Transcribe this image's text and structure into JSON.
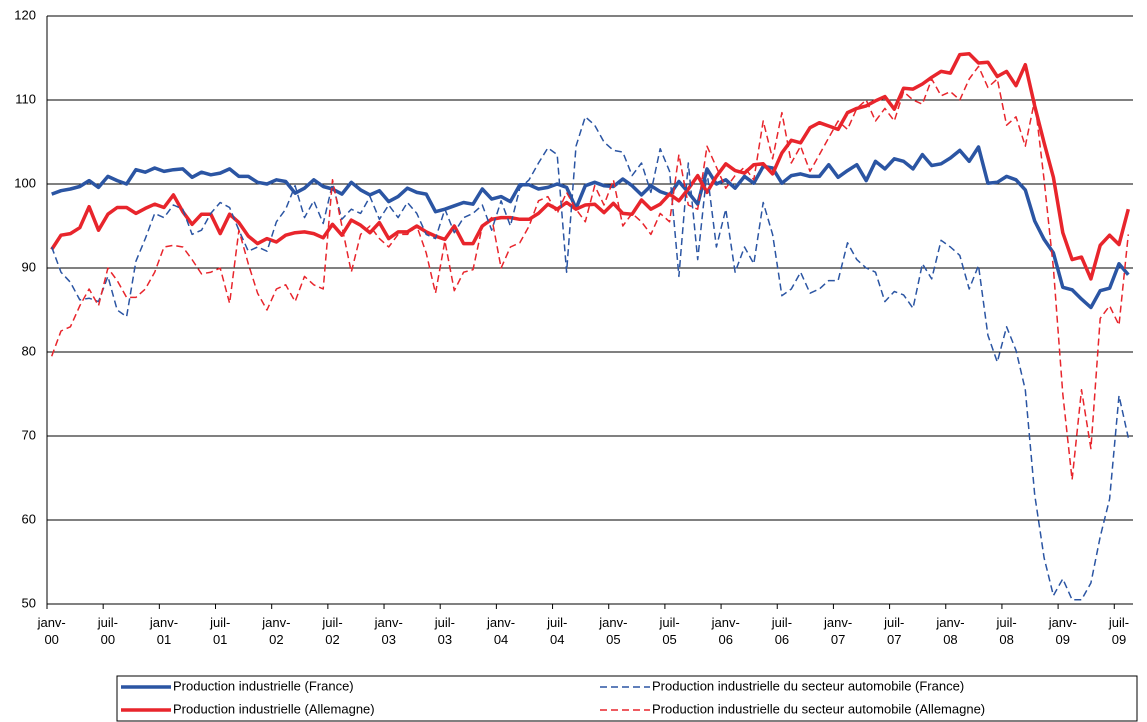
{
  "chart_data": {
    "type": "line",
    "categories": [
      "janv-00",
      null,
      null,
      null,
      null,
      null,
      "juil-00",
      null,
      null,
      null,
      null,
      null,
      "janv-01",
      null,
      null,
      null,
      null,
      null,
      "juil-01",
      null,
      null,
      null,
      null,
      null,
      "janv-02",
      null,
      null,
      null,
      null,
      null,
      "juil-02",
      null,
      null,
      null,
      null,
      null,
      "janv-03",
      null,
      null,
      null,
      null,
      null,
      "juil-03",
      null,
      null,
      null,
      null,
      null,
      "janv-04",
      null,
      null,
      null,
      null,
      null,
      "juil-04",
      null,
      null,
      null,
      null,
      null,
      "janv-05",
      null,
      null,
      null,
      null,
      null,
      "juil-05",
      null,
      null,
      null,
      null,
      null,
      "janv-06",
      null,
      null,
      null,
      null,
      null,
      "juil-06",
      null,
      null,
      null,
      null,
      null,
      "janv-07",
      null,
      null,
      null,
      null,
      null,
      "juil-07",
      null,
      null,
      null,
      null,
      null,
      "janv-08",
      null,
      null,
      null,
      null,
      null,
      "juil-08",
      null,
      null,
      null,
      null,
      null,
      "janv-09",
      null,
      null,
      null,
      null,
      null,
      "juil-09",
      null
    ],
    "ylim": [
      50,
      120
    ],
    "yticks": [
      50,
      60,
      70,
      80,
      90,
      100,
      110,
      120
    ],
    "grid": true,
    "series": [
      {
        "name": "Production industrielle (France)",
        "color": "#2b55a3",
        "dashed": false,
        "values": [
          98.8,
          99.2,
          99.4,
          99.7,
          100.4,
          99.6,
          100.9,
          100.4,
          100.0,
          101.7,
          101.4,
          101.9,
          101.5,
          101.7,
          101.8,
          100.8,
          101.4,
          101.1,
          101.3,
          101.8,
          100.9,
          100.9,
          100.2,
          100.0,
          100.5,
          100.3,
          98.9,
          99.5,
          100.5,
          99.7,
          99.4,
          98.8,
          100.2,
          99.3,
          98.7,
          99.2,
          97.9,
          98.5,
          99.5,
          99.0,
          98.8,
          96.7,
          97.0,
          97.4,
          97.8,
          97.6,
          99.4,
          98.2,
          98.5,
          97.9,
          99.9,
          99.9,
          99.4,
          99.6,
          100.0,
          99.6,
          97.1,
          99.8,
          100.2,
          99.8,
          99.7,
          100.6,
          99.8,
          98.7,
          99.8,
          99.1,
          98.7,
          100.3,
          99.0,
          97.6,
          101.8,
          100.0,
          100.5,
          99.5,
          100.9,
          100.1,
          102.1,
          101.9,
          100.1,
          101.0,
          101.2,
          100.9,
          100.9,
          102.3,
          100.8,
          101.6,
          102.3,
          100.4,
          102.7,
          101.8,
          103.0,
          102.7,
          101.8,
          103.5,
          102.2,
          102.4,
          103.1,
          104.0,
          102.7,
          104.4,
          100.1,
          100.2,
          100.9,
          100.5,
          99.3,
          95.6,
          93.4,
          91.8,
          87.7,
          87.4,
          86.3,
          85.3,
          87.3,
          87.6,
          90.5,
          89.2
        ]
      },
      {
        "name": "Production industrielle (Allemagne)",
        "color": "#e8252c",
        "dashed": false,
        "values": [
          92.2,
          93.9,
          94.1,
          94.8,
          97.3,
          94.5,
          96.4,
          97.2,
          97.2,
          96.5,
          97.1,
          97.6,
          97.2,
          98.7,
          96.7,
          95.2,
          96.4,
          96.4,
          94.1,
          96.4,
          95.4,
          93.8,
          92.9,
          93.5,
          93.1,
          93.9,
          94.2,
          94.3,
          94.1,
          93.6,
          95.2,
          93.9,
          95.7,
          95.1,
          94.2,
          95.4,
          93.5,
          94.3,
          94.3,
          95.0,
          94.3,
          93.8,
          93.4,
          95.0,
          92.9,
          92.9,
          95.0,
          95.8,
          96.0,
          96.0,
          95.8,
          95.8,
          96.5,
          97.6,
          97.0,
          97.8,
          97.0,
          97.5,
          97.6,
          96.6,
          97.7,
          96.5,
          96.4,
          98.1,
          97.0,
          97.6,
          98.8,
          98.0,
          99.4,
          101.0,
          99.0,
          100.9,
          102.4,
          101.6,
          101.3,
          102.3,
          102.4,
          101.2,
          103.7,
          105.2,
          104.9,
          106.7,
          107.3,
          106.9,
          106.5,
          108.5,
          109.0,
          109.3,
          109.9,
          110.4,
          108.9,
          111.4,
          111.3,
          111.9,
          112.7,
          113.4,
          113.2,
          115.4,
          115.5,
          114.4,
          114.5,
          112.8,
          113.4,
          111.7,
          114.2,
          109.3,
          104.9,
          100.8,
          94.2,
          91.0,
          91.3,
          88.7,
          92.7,
          93.9,
          92.8,
          97.0
        ]
      },
      {
        "name": "Production industrielle du secteur automobile (France)",
        "color": "#2b55a3",
        "dashed": true,
        "values": [
          92.5,
          89.5,
          88.3,
          86.2,
          86.4,
          86.0,
          89.0,
          85.0,
          84.2,
          90.8,
          93.5,
          96.5,
          96.0,
          97.5,
          97.0,
          94.0,
          94.5,
          96.5,
          97.8,
          97.2,
          94.5,
          92.0,
          92.5,
          92.0,
          95.5,
          97.0,
          99.8,
          96.0,
          98.0,
          95.3,
          100.0,
          95.8,
          97.0,
          96.5,
          98.5,
          95.8,
          97.5,
          96.0,
          97.8,
          96.5,
          94.0,
          93.5,
          97.0,
          94.2,
          96.0,
          96.5,
          97.5,
          94.5,
          98.0,
          95.0,
          99.5,
          100.5,
          102.5,
          104.3,
          103.5,
          89.5,
          104.5,
          108.0,
          107.0,
          105.0,
          104.0,
          103.8,
          101.0,
          102.5,
          99.0,
          104.2,
          101.5,
          89.0,
          102.5,
          91.0,
          101.5,
          92.5,
          97.0,
          89.5,
          92.5,
          90.5,
          97.8,
          94.0,
          86.7,
          87.5,
          89.5,
          87.0,
          87.5,
          88.5,
          88.5,
          93.0,
          91.0,
          90.0,
          89.5,
          86.0,
          87.2,
          86.8,
          85.2,
          90.5,
          88.7,
          93.3,
          92.5,
          91.5,
          87.5,
          90.3,
          82.0,
          78.8,
          83.0,
          80.2,
          75.5,
          63.0,
          55.5,
          51.0,
          53.0,
          50.5,
          50.5,
          52.5,
          58.0,
          62.5,
          74.8,
          69.8
        ]
      },
      {
        "name": "Production industrielle du secteur automobile (Allemagne)",
        "color": "#e8252c",
        "dashed": true,
        "values": [
          79.5,
          82.5,
          83.0,
          85.5,
          87.5,
          85.5,
          90.0,
          88.5,
          86.5,
          86.5,
          87.5,
          89.5,
          92.5,
          92.7,
          92.5,
          91.0,
          89.3,
          89.5,
          90.0,
          85.8,
          94.5,
          90.5,
          87.0,
          85.0,
          87.5,
          88.0,
          86.0,
          89.0,
          88.0,
          87.5,
          100.5,
          95.0,
          89.5,
          94.0,
          95.0,
          93.5,
          92.5,
          94.0,
          94.0,
          95.0,
          91.8,
          87.0,
          93.2,
          87.3,
          89.5,
          89.8,
          95.0,
          96.0,
          90.0,
          92.5,
          93.0,
          95.0,
          98.0,
          98.5,
          96.5,
          99.0,
          97.0,
          95.5,
          99.8,
          97.5,
          100.5,
          95.0,
          96.5,
          95.5,
          94.0,
          96.5,
          95.5,
          103.5,
          97.5,
          97.0,
          104.5,
          102.0,
          99.5,
          101.0,
          102.0,
          100.5,
          107.5,
          103.0,
          108.5,
          102.5,
          104.5,
          101.5,
          103.5,
          105.5,
          107.5,
          106.5,
          109.0,
          110.0,
          107.5,
          109.0,
          107.5,
          111.0,
          110.0,
          109.5,
          112.5,
          110.5,
          111.0,
          110.0,
          112.5,
          114.0,
          111.5,
          112.5,
          107.0,
          108.0,
          104.5,
          110.0,
          100.5,
          90.0,
          75.0,
          64.8,
          75.5,
          68.5,
          84.0,
          85.5,
          83.2,
          94.0
        ]
      }
    ]
  }
}
